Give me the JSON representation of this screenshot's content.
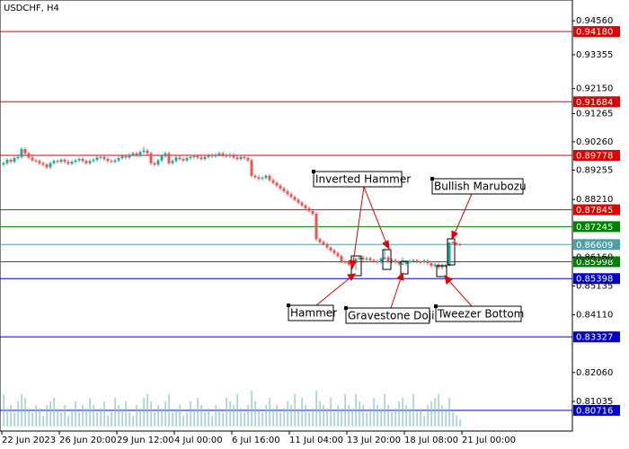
{
  "chart_data": {
    "type": "candlestick",
    "title": "USDCHF, H4",
    "ylim": [
      0.7998,
      0.953
    ],
    "yticks": [
      {
        "value": 0.9456,
        "label": "0.94560"
      },
      {
        "value": 0.93355,
        "label": "0.93355"
      },
      {
        "value": 0.9215,
        "label": "0.92150"
      },
      {
        "value": 0.91265,
        "label": "0.91265"
      },
      {
        "value": 0.9026,
        "label": "0.90260"
      },
      {
        "value": 0.89255,
        "label": "0.89255"
      },
      {
        "value": 0.8821,
        "label": "0.88210"
      },
      {
        "value": 0.8616,
        "label": "0.86160"
      },
      {
        "value": 0.85135,
        "label": "0.85135"
      },
      {
        "value": 0.8411,
        "label": "0.84110"
      },
      {
        "value": 0.8206,
        "label": "0.82060"
      },
      {
        "value": 0.81035,
        "label": "0.81035"
      }
    ],
    "xticks": [
      {
        "value": 0,
        "label": "22 Jun 2023"
      },
      {
        "value": 16,
        "label": "26 Jun 20:00"
      },
      {
        "value": 32,
        "label": "29 Jun 12:00"
      },
      {
        "value": 48,
        "label": "4 Jul 00:00"
      },
      {
        "value": 64,
        "label": "6 Jul 16:00"
      },
      {
        "value": 80,
        "label": "11 Jul 04:00"
      },
      {
        "value": 96,
        "label": "13 Jul 20:00"
      },
      {
        "value": 112,
        "label": "18 Jul 08:00"
      },
      {
        "value": 128,
        "label": "21 Jul 00:00"
      }
    ],
    "levels": [
      {
        "value": 0.9418,
        "label": "0.94180",
        "color": "#e00000"
      },
      {
        "value": 0.91684,
        "label": "0.91684",
        "color": "#e00000"
      },
      {
        "value": 0.89778,
        "label": "0.89778",
        "color": "#e00000"
      },
      {
        "value": 0.87845,
        "label": "0.87845",
        "color": "#e00000"
      },
      {
        "value": 0.87245,
        "label": "0.87245",
        "color": "#008000"
      },
      {
        "value": 0.86609,
        "label": "0.86609",
        "color": "#4f9fa8"
      },
      {
        "value": 0.85998,
        "label": "0.85998",
        "color": "#008000"
      },
      {
        "value": 0.85398,
        "label": "0.85398",
        "color": "#0000cc"
      },
      {
        "value": 0.83327,
        "label": "0.83327",
        "color": "#0000cc"
      },
      {
        "value": 0.80716,
        "label": "0.80716",
        "color": "#0000cc"
      }
    ],
    "bull_color": "#26a69a",
    "bear_color": "#ef5350",
    "volume_color": "#7fc5c8",
    "annotations": [
      "Inverted Hammer",
      "Bullish Marubozu",
      "Hammer",
      "Gravestone Doji",
      "Tweezer Bottom"
    ],
    "candles": [
      [
        0.8945,
        0.8956,
        0.8939,
        0.895
      ],
      [
        0.895,
        0.8968,
        0.8944,
        0.8962
      ],
      [
        0.8962,
        0.8968,
        0.8949,
        0.8955
      ],
      [
        0.8955,
        0.8974,
        0.8949,
        0.8968
      ],
      [
        0.8968,
        0.8978,
        0.8962,
        0.8972
      ],
      [
        0.8972,
        0.9006,
        0.8966,
        0.9
      ],
      [
        0.9,
        0.9006,
        0.8979,
        0.8985
      ],
      [
        0.8985,
        0.8991,
        0.8964,
        0.897
      ],
      [
        0.897,
        0.8976,
        0.8954,
        0.896
      ],
      [
        0.896,
        0.8966,
        0.8952,
        0.8958
      ],
      [
        0.8958,
        0.8964,
        0.8944,
        0.895
      ],
      [
        0.895,
        0.8956,
        0.8939,
        0.8945
      ],
      [
        0.8945,
        0.8951,
        0.8929,
        0.8935
      ],
      [
        0.8935,
        0.8956,
        0.8929,
        0.895
      ],
      [
        0.895,
        0.8964,
        0.8944,
        0.8958
      ],
      [
        0.8958,
        0.8964,
        0.8949,
        0.8955
      ],
      [
        0.8955,
        0.8968,
        0.8949,
        0.8962
      ],
      [
        0.8962,
        0.8968,
        0.8949,
        0.8955
      ],
      [
        0.8955,
        0.8961,
        0.8942,
        0.8948
      ],
      [
        0.8948,
        0.8961,
        0.8942,
        0.8955
      ],
      [
        0.8955,
        0.8966,
        0.8949,
        0.896
      ],
      [
        0.896,
        0.8971,
        0.8954,
        0.8965
      ],
      [
        0.8965,
        0.8971,
        0.8952,
        0.8958
      ],
      [
        0.8958,
        0.8964,
        0.8944,
        0.895
      ],
      [
        0.895,
        0.8964,
        0.8944,
        0.8958
      ],
      [
        0.8958,
        0.8968,
        0.8952,
        0.8962
      ],
      [
        0.8962,
        0.8976,
        0.8956,
        0.897
      ],
      [
        0.897,
        0.8978,
        0.8964,
        0.8972
      ],
      [
        0.8972,
        0.8978,
        0.8959,
        0.8965
      ],
      [
        0.8965,
        0.8971,
        0.8952,
        0.8958
      ],
      [
        0.8958,
        0.8964,
        0.8949,
        0.8955
      ],
      [
        0.8955,
        0.8966,
        0.8949,
        0.896
      ],
      [
        0.896,
        0.8974,
        0.8954,
        0.8968
      ],
      [
        0.8968,
        0.8981,
        0.8962,
        0.8975
      ],
      [
        0.8975,
        0.8981,
        0.8964,
        0.897
      ],
      [
        0.897,
        0.8986,
        0.8964,
        0.898
      ],
      [
        0.898,
        0.8991,
        0.8974,
        0.8985
      ],
      [
        0.8985,
        0.8991,
        0.8972,
        0.8978
      ],
      [
        0.8978,
        0.8996,
        0.8972,
        0.899
      ],
      [
        0.899,
        0.9008,
        0.8984,
        0.8995
      ],
      [
        0.8995,
        0.9001,
        0.8979,
        0.8985
      ],
      [
        0.8985,
        0.8991,
        0.8944,
        0.895
      ],
      [
        0.895,
        0.8956,
        0.8939,
        0.8945
      ],
      [
        0.8945,
        0.8966,
        0.8939,
        0.896
      ],
      [
        0.896,
        0.8981,
        0.8954,
        0.8975
      ],
      [
        0.8975,
        0.8991,
        0.8969,
        0.8985
      ],
      [
        0.8985,
        0.8991,
        0.8944,
        0.895
      ],
      [
        0.895,
        0.8964,
        0.8944,
        0.8958
      ],
      [
        0.8958,
        0.8976,
        0.8952,
        0.897
      ],
      [
        0.897,
        0.8976,
        0.8959,
        0.8965
      ],
      [
        0.8965,
        0.8971,
        0.8954,
        0.896
      ],
      [
        0.896,
        0.8974,
        0.8954,
        0.8968
      ],
      [
        0.8968,
        0.8978,
        0.8962,
        0.8972
      ],
      [
        0.8972,
        0.8981,
        0.8966,
        0.8975
      ],
      [
        0.8975,
        0.8981,
        0.8964,
        0.897
      ],
      [
        0.897,
        0.8976,
        0.8959,
        0.8965
      ],
      [
        0.8965,
        0.8978,
        0.8959,
        0.8972
      ],
      [
        0.8972,
        0.8984,
        0.8966,
        0.8978
      ],
      [
        0.8978,
        0.8984,
        0.8969,
        0.8975
      ],
      [
        0.8975,
        0.8986,
        0.8969,
        0.898
      ],
      [
        0.898,
        0.8991,
        0.8974,
        0.8985
      ],
      [
        0.8985,
        0.8991,
        0.8972,
        0.8978
      ],
      [
        0.8978,
        0.8984,
        0.8969,
        0.8975
      ],
      [
        0.8975,
        0.8986,
        0.8969,
        0.898
      ],
      [
        0.898,
        0.8986,
        0.8964,
        0.897
      ],
      [
        0.897,
        0.8976,
        0.8959,
        0.8965
      ],
      [
        0.8965,
        0.8978,
        0.8959,
        0.8972
      ],
      [
        0.8972,
        0.8978,
        0.8962,
        0.8968
      ],
      [
        0.8968,
        0.8974,
        0.8954,
        0.896
      ],
      [
        0.896,
        0.8966,
        0.8899,
        0.8905
      ],
      [
        0.8905,
        0.8911,
        0.8894,
        0.89
      ],
      [
        0.89,
        0.8906,
        0.8889,
        0.8895
      ],
      [
        0.8895,
        0.8904,
        0.8889,
        0.8898
      ],
      [
        0.8898,
        0.8911,
        0.8892,
        0.8905
      ],
      [
        0.8905,
        0.8911,
        0.8884,
        0.889
      ],
      [
        0.889,
        0.8896,
        0.8874,
        0.888
      ],
      [
        0.888,
        0.8886,
        0.8864,
        0.887
      ],
      [
        0.887,
        0.8876,
        0.8854,
        0.886
      ],
      [
        0.886,
        0.8866,
        0.8844,
        0.885
      ],
      [
        0.885,
        0.8856,
        0.8834,
        0.884
      ],
      [
        0.884,
        0.8846,
        0.8824,
        0.883
      ],
      [
        0.883,
        0.8836,
        0.8814,
        0.882
      ],
      [
        0.882,
        0.8826,
        0.8804,
        0.881
      ],
      [
        0.881,
        0.8816,
        0.8794,
        0.88
      ],
      [
        0.88,
        0.8806,
        0.8784,
        0.879
      ],
      [
        0.879,
        0.8796,
        0.8774,
        0.878
      ],
      [
        0.878,
        0.8786,
        0.8764,
        0.877
      ],
      [
        0.877,
        0.8776,
        0.8674,
        0.868
      ],
      [
        0.868,
        0.8686,
        0.8664,
        0.867
      ],
      [
        0.867,
        0.8676,
        0.8656,
        0.8662
      ],
      [
        0.8662,
        0.8668,
        0.8644,
        0.865
      ],
      [
        0.865,
        0.8656,
        0.8634,
        0.864
      ],
      [
        0.864,
        0.8646,
        0.8624,
        0.863
      ],
      [
        0.863,
        0.8636,
        0.8614,
        0.862
      ],
      [
        0.862,
        0.8626,
        0.8594,
        0.86
      ],
      [
        0.86,
        0.8606,
        0.8592,
        0.8598
      ],
      [
        0.8598,
        0.8604,
        0.8584,
        0.859
      ],
      [
        0.859,
        0.8601,
        0.8584,
        0.8595
      ],
      [
        0.8595,
        0.8614,
        0.857,
        0.861
      ],
      [
        0.861,
        0.8621,
        0.8604,
        0.8615
      ],
      [
        0.8615,
        0.8621,
        0.8602,
        0.8608
      ],
      [
        0.8608,
        0.8618,
        0.8602,
        0.8612
      ],
      [
        0.8612,
        0.8618,
        0.8599,
        0.8605
      ],
      [
        0.8605,
        0.8611,
        0.8596,
        0.8602
      ],
      [
        0.8602,
        0.8608,
        0.8592,
        0.8598
      ],
      [
        0.8598,
        0.8616,
        0.8592,
        0.861
      ],
      [
        0.861,
        0.8645,
        0.8606,
        0.8615
      ],
      [
        0.8615,
        0.8621,
        0.8594,
        0.86
      ],
      [
        0.86,
        0.8611,
        0.8594,
        0.8605
      ],
      [
        0.8605,
        0.8611,
        0.8592,
        0.8598
      ],
      [
        0.8598,
        0.8604,
        0.8586,
        0.8592
      ],
      [
        0.8592,
        0.8615,
        0.8588,
        0.8593
      ],
      [
        0.8593,
        0.8604,
        0.8587,
        0.8598
      ],
      [
        0.8598,
        0.8608,
        0.8592,
        0.8602
      ],
      [
        0.8602,
        0.8611,
        0.8596,
        0.8605
      ],
      [
        0.8605,
        0.8611,
        0.8594,
        0.86
      ],
      [
        0.86,
        0.8606,
        0.8592,
        0.8598
      ],
      [
        0.8598,
        0.8609,
        0.8592,
        0.8603
      ],
      [
        0.8603,
        0.8609,
        0.8589,
        0.8595
      ],
      [
        0.8595,
        0.8601,
        0.8579,
        0.8585
      ],
      [
        0.8585,
        0.8596,
        0.8579,
        0.859
      ],
      [
        0.859,
        0.8596,
        0.8572,
        0.858
      ],
      [
        0.858,
        0.8594,
        0.8572,
        0.8588
      ],
      [
        0.8588,
        0.8594,
        0.8579,
        0.8585
      ],
      [
        0.8585,
        0.867,
        0.8584,
        0.8668
      ],
      [
        0.8668,
        0.8674,
        0.866,
        0.8666
      ],
      [
        0.8666,
        0.8672,
        0.8656,
        0.8662
      ],
      [
        0.8662,
        0.8667,
        0.8655,
        0.8661
      ]
    ],
    "volumes": [
      9,
      5,
      6,
      4,
      7,
      9,
      8,
      5,
      4,
      6,
      5,
      3,
      6,
      7,
      8,
      5,
      4,
      6,
      3,
      5,
      7,
      4,
      6,
      5,
      8,
      6,
      4,
      5,
      7,
      3,
      4,
      8,
      6,
      5,
      7,
      4,
      3,
      6,
      5,
      8,
      9,
      7,
      4,
      6,
      5,
      7,
      9,
      4,
      5,
      6,
      3,
      4,
      7,
      5,
      8,
      6,
      4,
      5,
      3,
      6,
      5,
      4,
      8,
      7,
      6,
      9,
      5,
      4,
      6,
      10,
      7,
      5,
      4,
      6,
      8,
      5,
      6,
      4,
      5,
      7,
      6,
      9,
      5,
      8,
      6,
      4,
      5,
      10,
      7,
      6,
      5,
      8,
      4,
      6,
      5,
      9,
      6,
      5,
      9,
      7,
      6,
      4,
      5,
      8,
      6,
      5,
      9,
      6,
      4,
      5,
      7,
      8,
      6,
      5,
      9,
      4,
      5,
      3,
      6,
      7,
      8,
      9,
      6,
      5,
      8,
      4,
      3,
      2
    ]
  }
}
